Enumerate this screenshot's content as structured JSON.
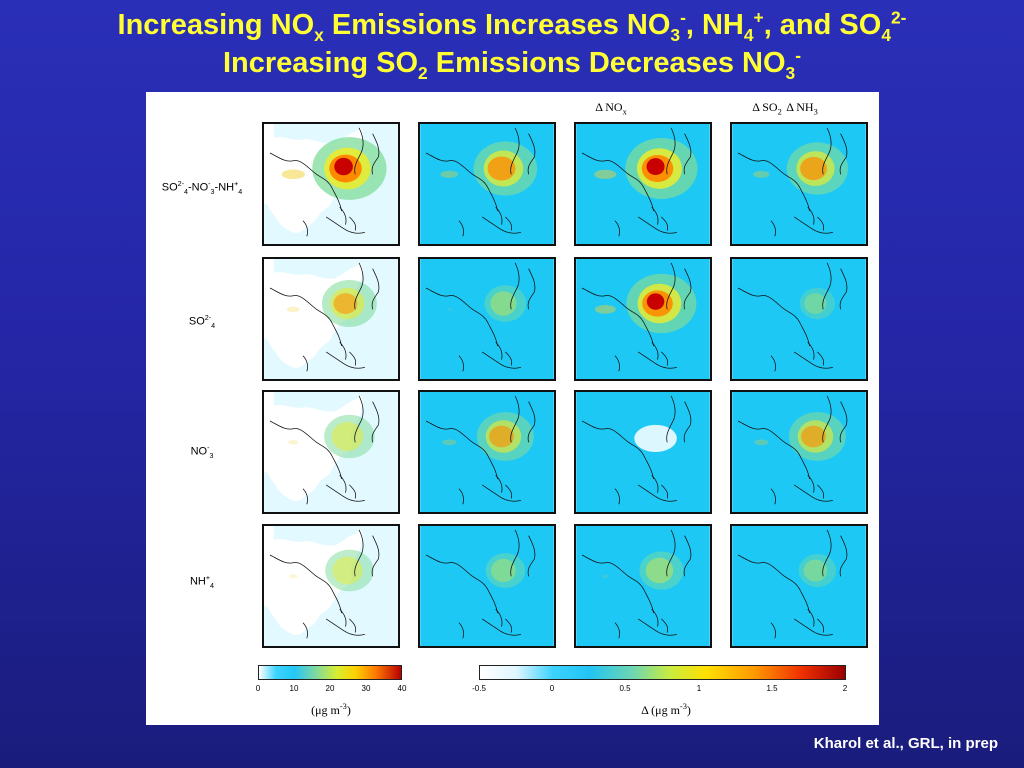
{
  "slide": {
    "title_line1": {
      "p1": "Increasing NO",
      "s1": "x",
      "p2": " Emissions Increases NO",
      "s2": "3",
      "u2": "-",
      "p3": ", NH",
      "s3": "4",
      "u3": "+",
      "p4": ", and SO",
      "s4": "4",
      "u4": "2-"
    },
    "title_line2": {
      "p1": "Increasing SO",
      "s1": "2",
      "p2": " Emissions Decreases NO",
      "s2": "3",
      "u2": "-"
    }
  },
  "figure": {
    "column_headers": [
      {
        "main": "Δ NO",
        "sub": "x"
      },
      {
        "main": "Δ SO",
        "sub": "2"
      },
      {
        "main": "Δ NH",
        "sub": "3"
      }
    ],
    "row_labels": [
      {
        "t1": "SO",
        "sup1": "2-",
        "sub1": "4",
        "t2": "-NO",
        "sup2": "-",
        "sub2": "3",
        "t3": "-NH",
        "sup3": "+",
        "sub3": "4"
      },
      {
        "t1": "SO",
        "sup1": "2-",
        "sub1": "4"
      },
      {
        "t1": "NO",
        "sup1": "-",
        "sub1": "3"
      },
      {
        "t1": "NH",
        "sup1": "+",
        "sub1": "4"
      }
    ],
    "colorbar_abs": {
      "ticks": [
        "0",
        "10",
        "20",
        "30",
        "40"
      ],
      "label_main": "(μg m",
      "label_sup": "-3",
      "label_end": ")"
    },
    "colorbar_delta": {
      "ticks": [
        "-0.5",
        "0",
        "0.5",
        "1",
        "1.5",
        "2"
      ],
      "label_main": "Δ (μg m",
      "label_sup": "-3",
      "label_end": ")"
    },
    "colors": {
      "ocean": "#1ec8f5",
      "ocean_abs": "#ffffff",
      "land_lines": "#111111"
    }
  },
  "citation": "Kharol et al., GRL, in prep"
}
